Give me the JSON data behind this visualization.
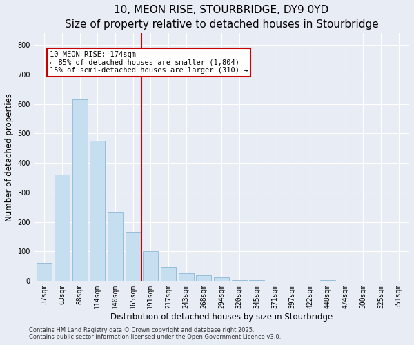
{
  "title": "10, MEON RISE, STOURBRIDGE, DY9 0YD",
  "subtitle": "Size of property relative to detached houses in Stourbridge",
  "xlabel": "Distribution of detached houses by size in Stourbridge",
  "ylabel": "Number of detached properties",
  "bar_labels": [
    "37sqm",
    "63sqm",
    "88sqm",
    "114sqm",
    "140sqm",
    "165sqm",
    "191sqm",
    "217sqm",
    "243sqm",
    "268sqm",
    "294sqm",
    "320sqm",
    "345sqm",
    "371sqm",
    "397sqm",
    "422sqm",
    "448sqm",
    "474sqm",
    "500sqm",
    "525sqm",
    "551sqm"
  ],
  "bar_values": [
    60,
    360,
    615,
    475,
    235,
    165,
    100,
    47,
    25,
    18,
    12,
    2,
    1,
    0,
    0,
    0,
    1,
    0,
    0,
    0,
    0
  ],
  "bar_color": "#c6dff0",
  "bar_edge_color": "#8bb8d8",
  "vline_x_index": 5.5,
  "vline_color": "#cc0000",
  "annotation_text": "10 MEON RISE: 174sqm\n← 85% of detached houses are smaller (1,804)\n15% of semi-detached houses are larger (310) →",
  "annotation_box_color": "#cc0000",
  "annotation_text_color": "#000000",
  "ylim": [
    0,
    840
  ],
  "yticks": [
    0,
    100,
    200,
    300,
    400,
    500,
    600,
    700,
    800
  ],
  "bg_color": "#e8ecf4",
  "plot_bg_color": "#e8ecf4",
  "footnote1": "Contains HM Land Registry data © Crown copyright and database right 2025.",
  "footnote2": "Contains public sector information licensed under the Open Government Licence v3.0.",
  "title_fontsize": 11,
  "axis_label_fontsize": 8.5,
  "tick_fontsize": 7,
  "footnote_fontsize": 6,
  "grid_color": "#ffffff",
  "annotation_fontsize": 7.5
}
